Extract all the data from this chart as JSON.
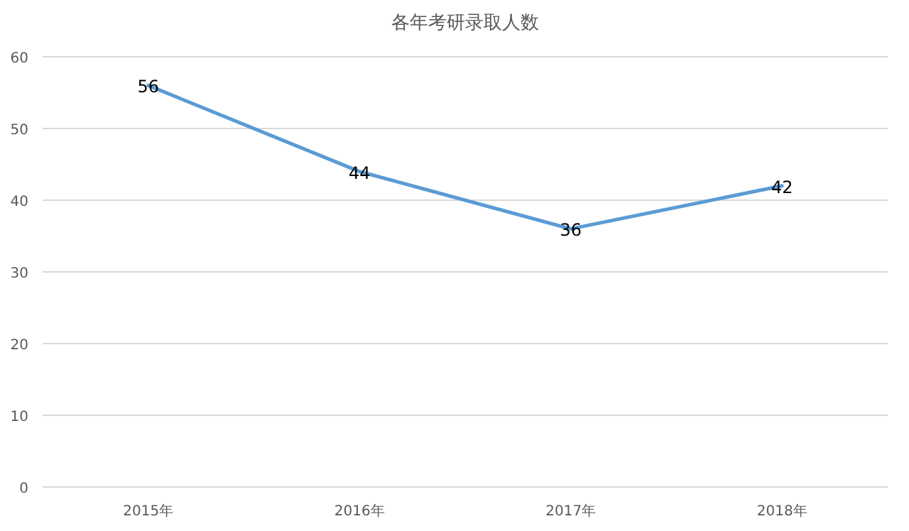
{
  "chart_data": {
    "type": "line",
    "title": "各年考研录取人数",
    "categories": [
      "2015年",
      "2016年",
      "2017年",
      "2018年"
    ],
    "series": [
      {
        "color": "#5b9bd5",
        "values": [
          56,
          44,
          36,
          42
        ]
      }
    ],
    "ylim": [
      0,
      60
    ],
    "yticks": [
      0,
      10,
      20,
      30,
      40,
      50,
      60
    ],
    "grid": "y",
    "data_labels": true
  }
}
